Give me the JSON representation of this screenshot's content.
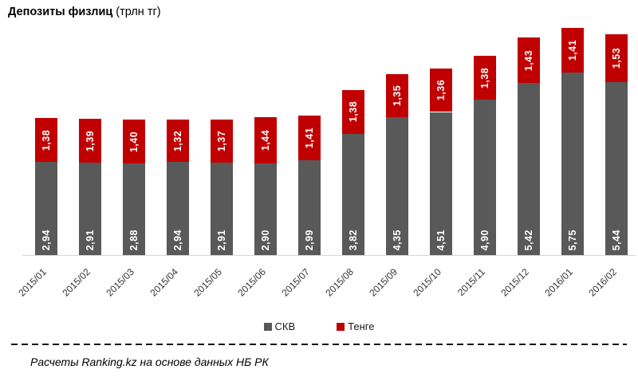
{
  "chart_data": {
    "type": "bar",
    "stacked": true,
    "title": "Депозиты физлиц",
    "title_suffix": "(трлн тг)",
    "categories": [
      "2015/01",
      "2015/02",
      "2015/03",
      "2015/04",
      "2015/05",
      "2015/06",
      "2015/07",
      "2015/08",
      "2015/09",
      "2015/10",
      "2015/11",
      "2015/12",
      "2016/01",
      "2016/02"
    ],
    "series": [
      {
        "name": "СКВ",
        "slug": "skv",
        "color": "#595959",
        "values": [
          2.94,
          2.91,
          2.88,
          2.94,
          2.91,
          2.9,
          2.99,
          3.82,
          4.35,
          4.51,
          4.9,
          5.42,
          5.75,
          5.44
        ]
      },
      {
        "name": "Тенге",
        "slug": "tenge",
        "color": "#C00000",
        "values": [
          1.38,
          1.39,
          1.4,
          1.32,
          1.37,
          1.44,
          1.41,
          1.38,
          1.35,
          1.36,
          1.38,
          1.43,
          1.41,
          1.53
        ]
      }
    ],
    "value_label_color": "#ffffff",
    "decimal_separator": ",",
    "ylim": [
      0,
      7.2
    ],
    "grid": false,
    "legend_position": "bottom",
    "footer": "Расчеты Ranking.kz на основе данных НБ РК"
  }
}
